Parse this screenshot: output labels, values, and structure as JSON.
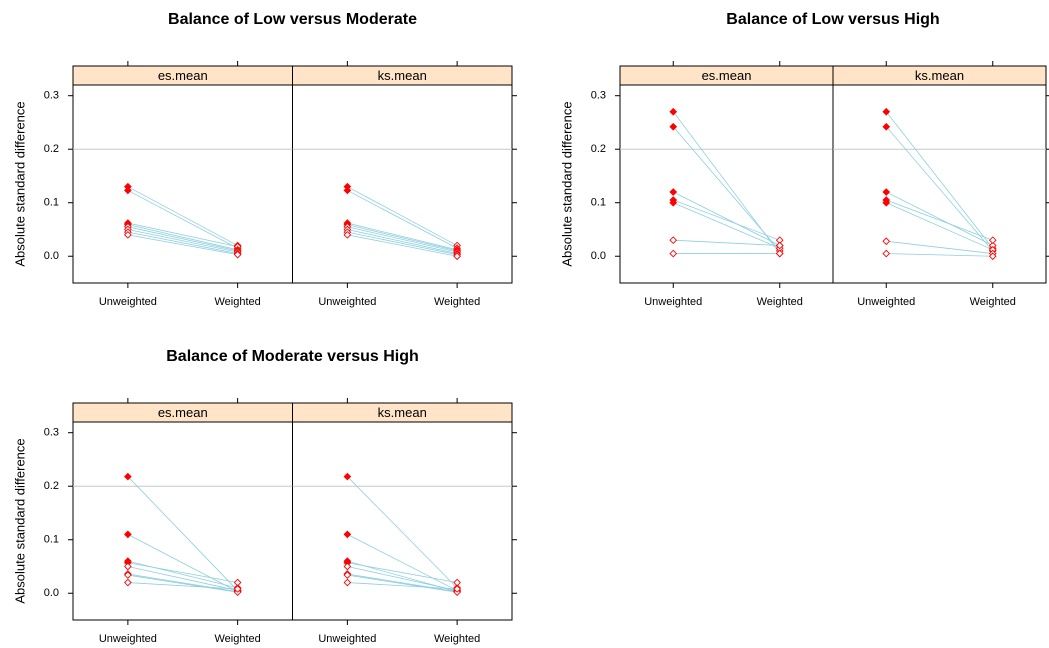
{
  "chart_data": [
    {
      "type": "line",
      "title": "Balance of Low versus Moderate",
      "ylabel": "Absolute standard difference",
      "categories": [
        "Unweighted",
        "Weighted"
      ],
      "ylim": [
        -0.05,
        0.32
      ],
      "yticks": [
        {
          "value": 0,
          "label": "0.0"
        },
        0.1,
        0.2,
        0.3
      ],
      "reference_line": 0.2,
      "line_color": "#8ecfe0",
      "point_color": "#ff0000",
      "strip_color": "#ffe4c8",
      "panels": [
        {
          "name": "es.mean",
          "series": [
            {
              "values": [
                0.13,
                0.02
              ],
              "filled": [
                true,
                false
              ]
            },
            {
              "values": [
                0.123,
                0.015
              ],
              "filled": [
                true,
                false
              ]
            },
            {
              "values": [
                0.062,
                0.018
              ],
              "filled": [
                true,
                false
              ]
            },
            {
              "values": [
                0.059,
                0.012
              ],
              "filled": [
                true,
                false
              ]
            },
            {
              "values": [
                0.055,
                0.01
              ],
              "filled": [
                false,
                false
              ]
            },
            {
              "values": [
                0.05,
                0.008
              ],
              "filled": [
                false,
                false
              ]
            },
            {
              "values": [
                0.045,
                0.005
              ],
              "filled": [
                false,
                false
              ]
            },
            {
              "values": [
                0.04,
                0.003
              ],
              "filled": [
                false,
                false
              ]
            }
          ]
        },
        {
          "name": "ks.mean",
          "series": [
            {
              "values": [
                0.13,
                0.02
              ],
              "filled": [
                true,
                false
              ]
            },
            {
              "values": [
                0.123,
                0.015
              ],
              "filled": [
                true,
                false
              ]
            },
            {
              "values": [
                0.062,
                0.012
              ],
              "filled": [
                true,
                false
              ]
            },
            {
              "values": [
                0.059,
                0.01
              ],
              "filled": [
                true,
                false
              ]
            },
            {
              "values": [
                0.055,
                0.008
              ],
              "filled": [
                false,
                false
              ]
            },
            {
              "values": [
                0.05,
                0.005
              ],
              "filled": [
                false,
                false
              ]
            },
            {
              "values": [
                0.045,
                0.003
              ],
              "filled": [
                false,
                false
              ]
            },
            {
              "values": [
                0.04,
                0.0
              ],
              "filled": [
                false,
                false
              ]
            }
          ]
        }
      ]
    },
    {
      "type": "line",
      "title": "Balance of Low versus High",
      "ylabel": "Absolute standard difference",
      "categories": [
        "Unweighted",
        "Weighted"
      ],
      "ylim": [
        -0.05,
        0.32
      ],
      "yticks": [
        {
          "value": 0,
          "label": "0.0"
        },
        0.1,
        0.2,
        0.3
      ],
      "reference_line": 0.2,
      "line_color": "#8ecfe0",
      "point_color": "#ff0000",
      "strip_color": "#ffe4c8",
      "panels": [
        {
          "name": "es.mean",
          "series": [
            {
              "values": [
                0.27,
                0.005
              ],
              "filled": [
                true,
                false
              ]
            },
            {
              "values": [
                0.242,
                0.01
              ],
              "filled": [
                true,
                false
              ]
            },
            {
              "values": [
                0.12,
                0.02
              ],
              "filled": [
                true,
                false
              ]
            },
            {
              "values": [
                0.105,
                0.03
              ],
              "filled": [
                true,
                false
              ]
            },
            {
              "values": [
                0.1,
                0.015
              ],
              "filled": [
                true,
                false
              ]
            },
            {
              "values": [
                0.03,
                0.02
              ],
              "filled": [
                false,
                false
              ]
            },
            {
              "values": [
                0.005,
                0.005
              ],
              "filled": [
                false,
                false
              ]
            }
          ]
        },
        {
          "name": "ks.mean",
          "series": [
            {
              "values": [
                0.27,
                0.015
              ],
              "filled": [
                true,
                false
              ]
            },
            {
              "values": [
                0.242,
                0.01
              ],
              "filled": [
                true,
                false
              ]
            },
            {
              "values": [
                0.12,
                0.02
              ],
              "filled": [
                true,
                false
              ]
            },
            {
              "values": [
                0.105,
                0.03
              ],
              "filled": [
                true,
                false
              ]
            },
            {
              "values": [
                0.1,
                0.012
              ],
              "filled": [
                true,
                false
              ]
            },
            {
              "values": [
                0.028,
                0.005
              ],
              "filled": [
                false,
                false
              ]
            },
            {
              "values": [
                0.005,
                0.0
              ],
              "filled": [
                false,
                false
              ]
            }
          ]
        }
      ]
    },
    {
      "type": "line",
      "title": "Balance of Moderate versus High",
      "ylabel": "Absolute standard difference",
      "categories": [
        "Unweighted",
        "Weighted"
      ],
      "ylim": [
        -0.05,
        0.32
      ],
      "yticks": [
        {
          "value": 0,
          "label": "0.0"
        },
        0.1,
        0.2,
        0.3
      ],
      "reference_line": 0.2,
      "line_color": "#8ecfe0",
      "point_color": "#ff0000",
      "strip_color": "#ffe4c8",
      "panels": [
        {
          "name": "es.mean",
          "series": [
            {
              "values": [
                0.218,
                0.005
              ],
              "filled": [
                true,
                false
              ]
            },
            {
              "values": [
                0.11,
                0.003
              ],
              "filled": [
                true,
                false
              ]
            },
            {
              "values": [
                0.06,
                0.01
              ],
              "filled": [
                true,
                false
              ]
            },
            {
              "values": [
                0.057,
                0.02
              ],
              "filled": [
                true,
                false
              ]
            },
            {
              "values": [
                0.05,
                0.005
              ],
              "filled": [
                false,
                false
              ]
            },
            {
              "values": [
                0.036,
                0.003
              ],
              "filled": [
                true,
                false
              ]
            },
            {
              "values": [
                0.034,
                0.002
              ],
              "filled": [
                false,
                false
              ]
            },
            {
              "values": [
                0.02,
                0.008
              ],
              "filled": [
                false,
                false
              ]
            }
          ]
        },
        {
          "name": "ks.mean",
          "series": [
            {
              "values": [
                0.218,
                0.01
              ],
              "filled": [
                true,
                false
              ]
            },
            {
              "values": [
                0.11,
                0.005
              ],
              "filled": [
                true,
                false
              ]
            },
            {
              "values": [
                0.06,
                0.003
              ],
              "filled": [
                true,
                false
              ]
            },
            {
              "values": [
                0.057,
                0.02
              ],
              "filled": [
                true,
                false
              ]
            },
            {
              "values": [
                0.05,
                0.005
              ],
              "filled": [
                false,
                false
              ]
            },
            {
              "values": [
                0.036,
                0.003
              ],
              "filled": [
                true,
                false
              ]
            },
            {
              "values": [
                0.034,
                0.002
              ],
              "filled": [
                false,
                false
              ]
            },
            {
              "values": [
                0.02,
                0.008
              ],
              "filled": [
                false,
                false
              ]
            }
          ]
        }
      ]
    }
  ]
}
